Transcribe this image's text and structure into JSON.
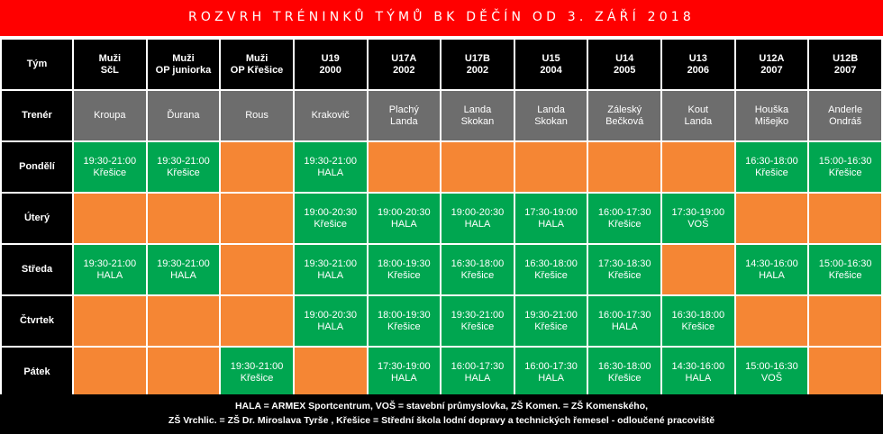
{
  "title": "ROZVRH TRÉNINKŮ TÝMŮ BK DĚČÍN OD 3. ZÁŘÍ 2018",
  "colors": {
    "title_bg": "#ff0000",
    "header_bg": "#000000",
    "trainer_bg": "#6d6d6d",
    "session_bg": "#00a650",
    "empty_bg": "#f58634",
    "text": "#ffffff"
  },
  "row_labels": {
    "team": "Tým",
    "trainer": "Trenér"
  },
  "teams": [
    {
      "line1": "Muži",
      "line2": "SčL"
    },
    {
      "line1": "Muži",
      "line2": "OP juniorka"
    },
    {
      "line1": "Muži",
      "line2": "OP Křešice"
    },
    {
      "line1": "U19",
      "line2": "2000"
    },
    {
      "line1": "U17A",
      "line2": "2002"
    },
    {
      "line1": "U17B",
      "line2": "2002"
    },
    {
      "line1": "U15",
      "line2": "2004"
    },
    {
      "line1": "U14",
      "line2": "2005"
    },
    {
      "line1": "U13",
      "line2": "2006"
    },
    {
      "line1": "U12A",
      "line2": "2007"
    },
    {
      "line1": "U12B",
      "line2": "2007"
    }
  ],
  "trainers": [
    {
      "line1": "Kroupa",
      "line2": ""
    },
    {
      "line1": "Ďurana",
      "line2": ""
    },
    {
      "line1": "Rous",
      "line2": ""
    },
    {
      "line1": "Krakovič",
      "line2": ""
    },
    {
      "line1": "Plachý",
      "line2": "Landa"
    },
    {
      "line1": "Landa",
      "line2": "Skokan"
    },
    {
      "line1": "Landa",
      "line2": "Skokan"
    },
    {
      "line1": "Záleský",
      "line2": "Bečková"
    },
    {
      "line1": "Kout",
      "line2": "Landa"
    },
    {
      "line1": "Houška",
      "line2": "Mišejko"
    },
    {
      "line1": "Anderle",
      "line2": "Ondráš"
    }
  ],
  "days": [
    {
      "name": "Pondělí",
      "cells": [
        {
          "time": "19:30-21:00",
          "place": "Křešice"
        },
        {
          "time": "19:30-21:00",
          "place": "Křešice"
        },
        null,
        {
          "time": "19:30-21:00",
          "place": "HALA"
        },
        null,
        null,
        null,
        null,
        null,
        {
          "time": "16:30-18:00",
          "place": "Křešice"
        },
        {
          "time": "15:00-16:30",
          "place": "Křešice"
        }
      ]
    },
    {
      "name": "Úterý",
      "cells": [
        null,
        null,
        null,
        {
          "time": "19:00-20:30",
          "place": "Křešice"
        },
        {
          "time": "19:00-20:30",
          "place": "HALA"
        },
        {
          "time": "19:00-20:30",
          "place": "HALA"
        },
        {
          "time": "17:30-19:00",
          "place": "HALA"
        },
        {
          "time": "16:00-17:30",
          "place": "Křešice"
        },
        {
          "time": "17:30-19:00",
          "place": "VOŠ"
        },
        null,
        null
      ]
    },
    {
      "name": "Středa",
      "cells": [
        {
          "time": "19:30-21:00",
          "place": "HALA"
        },
        {
          "time": "19:30-21:00",
          "place": "HALA"
        },
        null,
        {
          "time": "19:30-21:00",
          "place": "HALA"
        },
        {
          "time": "18:00-19:30",
          "place": "Křešice"
        },
        {
          "time": "16:30-18:00",
          "place": "Křešice"
        },
        {
          "time": "16:30-18:00",
          "place": "Křešice"
        },
        {
          "time": "17:30-18:30",
          "place": "Křešice"
        },
        null,
        {
          "time": "14:30-16:00",
          "place": "HALA"
        },
        {
          "time": "15:00-16:30",
          "place": "Křešice"
        }
      ]
    },
    {
      "name": "Čtvrtek",
      "cells": [
        null,
        null,
        null,
        {
          "time": "19:00-20:30",
          "place": "HALA"
        },
        {
          "time": "18:00-19:30",
          "place": "Křešice"
        },
        {
          "time": "19:30-21:00",
          "place": "Křešice"
        },
        {
          "time": "19:30-21:00",
          "place": "Křešice"
        },
        {
          "time": "16:00-17:30",
          "place": "HALA"
        },
        {
          "time": "16:30-18:00",
          "place": "Křešice"
        },
        null,
        null
      ]
    },
    {
      "name": "Pátek",
      "cells": [
        null,
        null,
        {
          "time": "19:30-21:00",
          "place": "Křešice"
        },
        null,
        {
          "time": "17:30-19:00",
          "place": "HALA"
        },
        {
          "time": "16:00-17:30",
          "place": "HALA"
        },
        {
          "time": "16:00-17:30",
          "place": "HALA"
        },
        {
          "time": "16:30-18:00",
          "place": "Křešice"
        },
        {
          "time": "14:30-16:00",
          "place": "HALA"
        },
        {
          "time": "15:00-16:30",
          "place": "VOŠ"
        },
        null
      ]
    }
  ],
  "footer": {
    "line1": "HALA = ARMEX Sportcentrum, VOŠ = stavební průmyslovka, ZŠ Komen. = ZŠ Komenského,",
    "line2": "ZŠ Vrchlic. = ZŠ Dr. Miroslava Tyrše , Křešice = Střední škola lodní dopravy a technických řemesel - odloučené pracoviště"
  }
}
